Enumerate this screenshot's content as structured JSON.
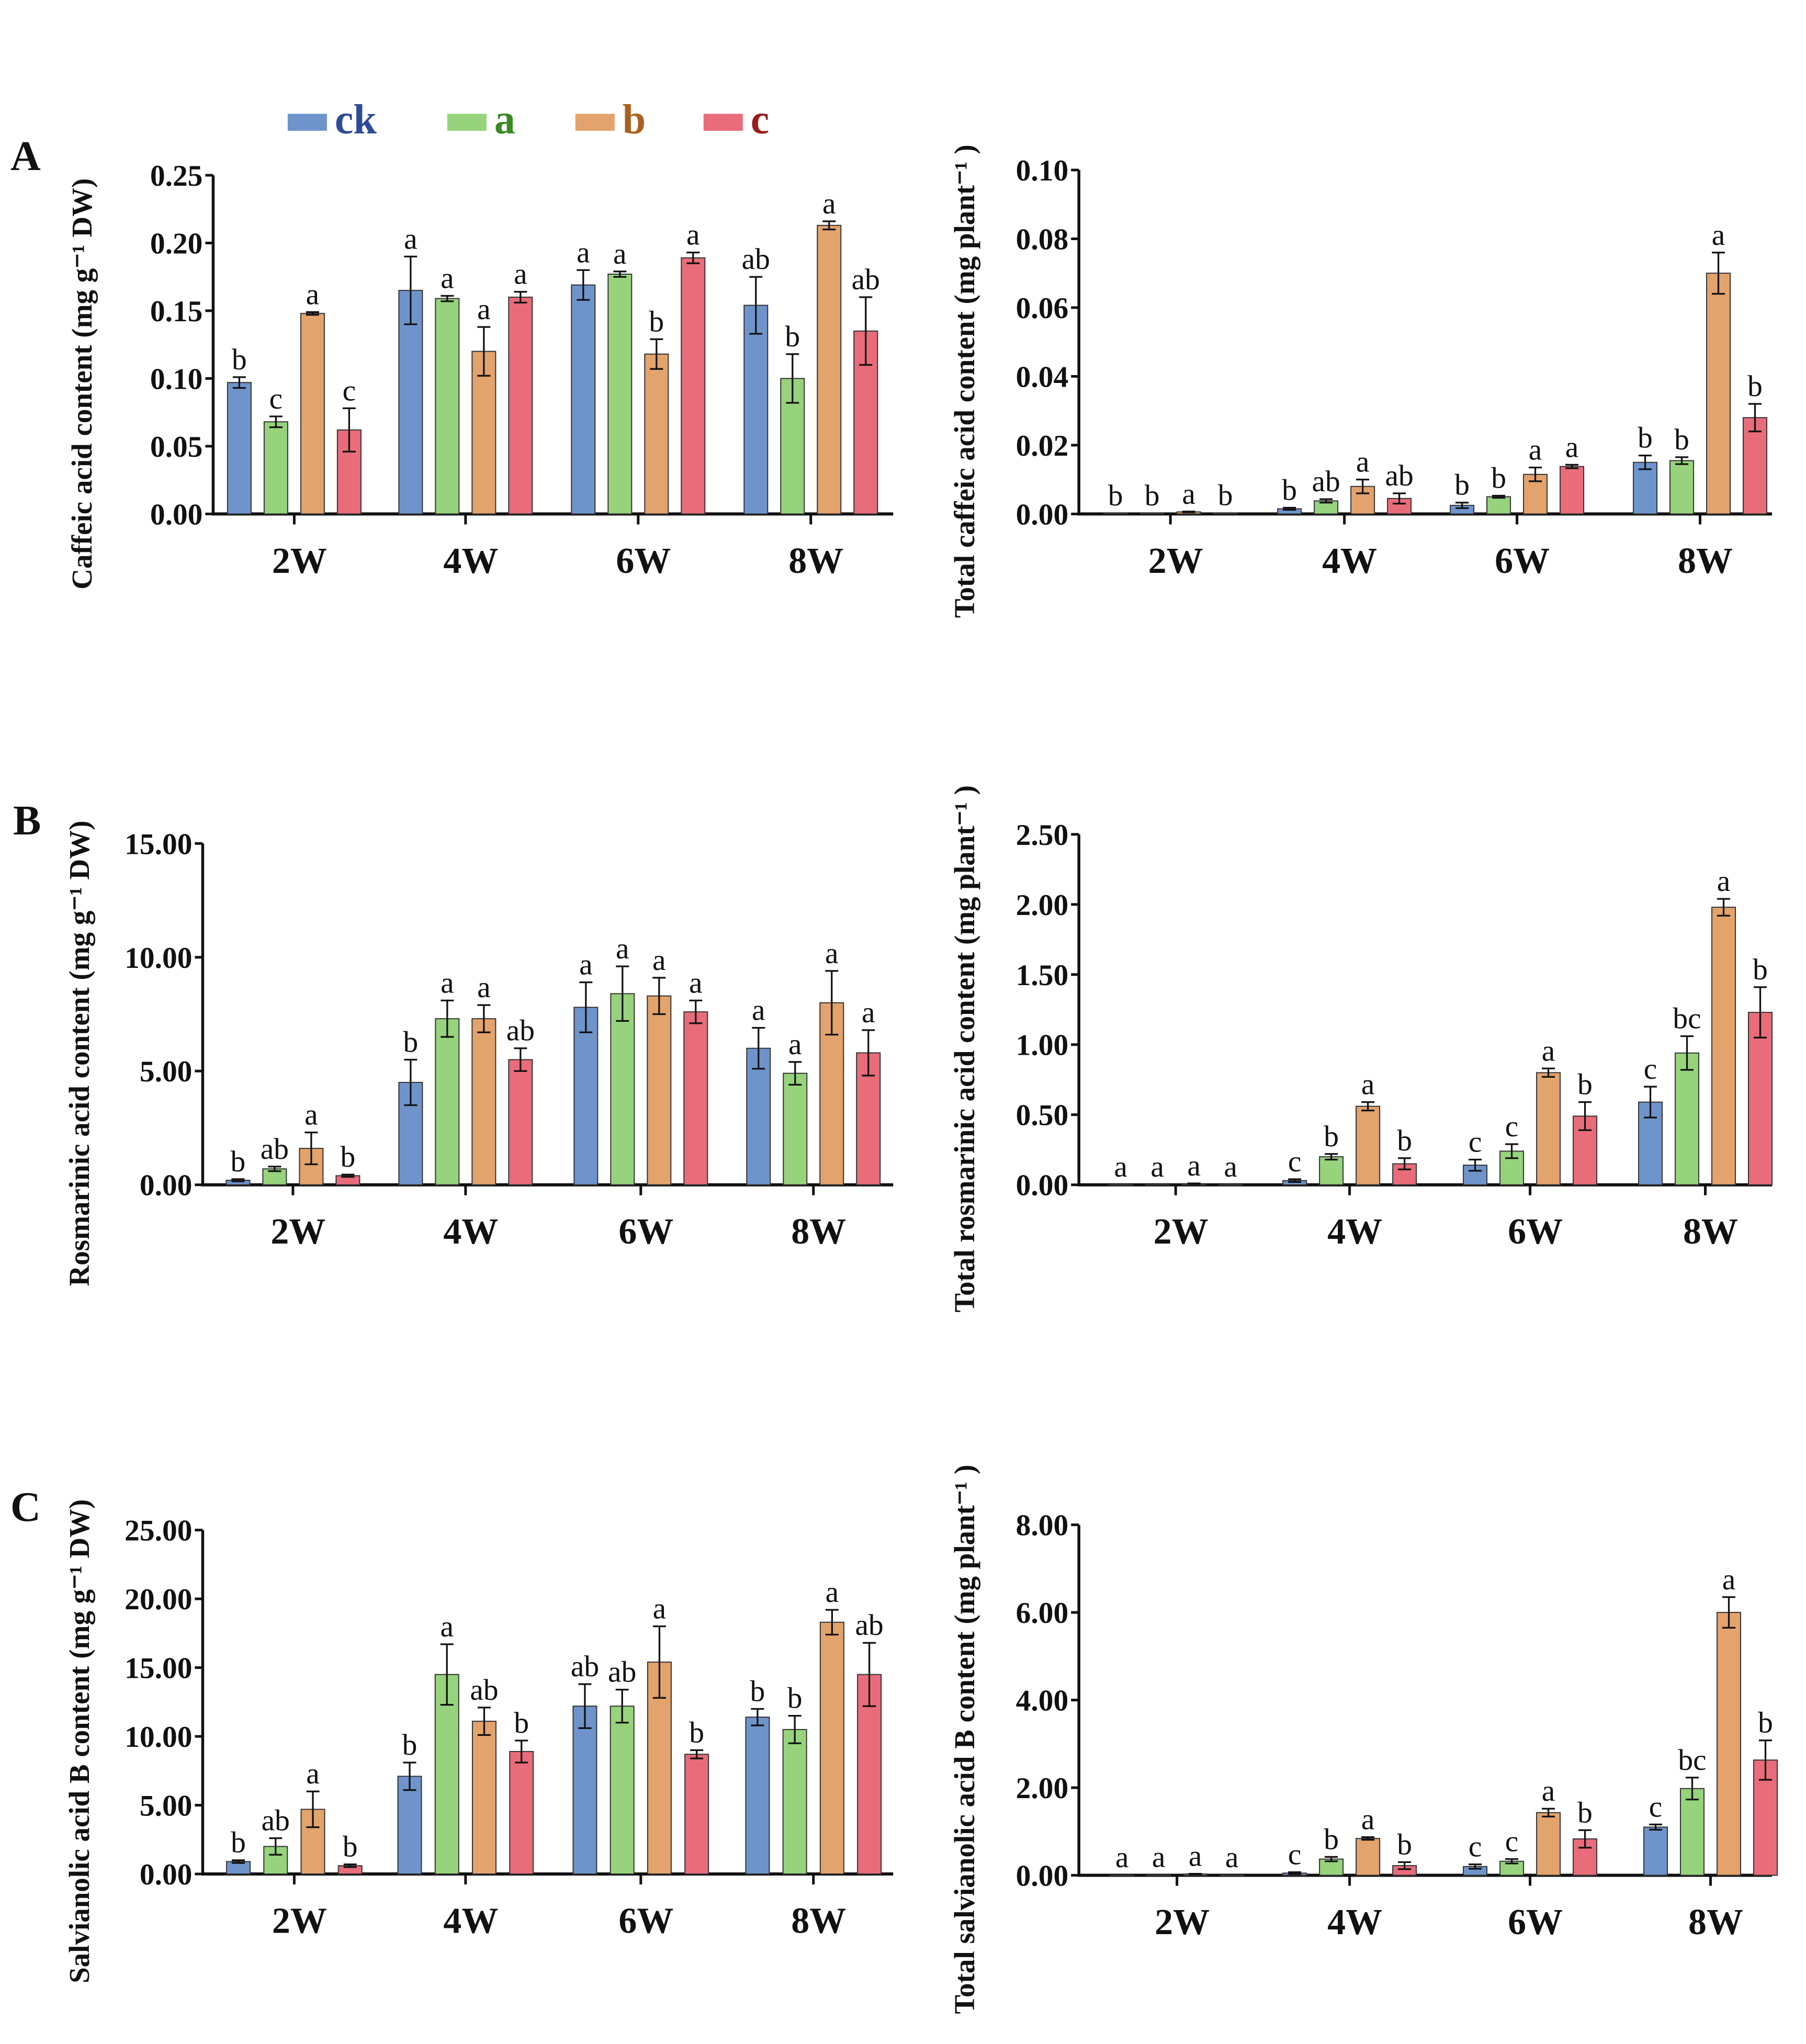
{
  "legend": [
    {
      "label": "ck",
      "color": "#6f94cc",
      "text_color": "#2d4c97"
    },
    {
      "label": "a",
      "color": "#97d37c",
      "text_color": "#3a8a24"
    },
    {
      "label": "b",
      "color": "#e3a36c",
      "text_color": "#a8601e"
    },
    {
      "label": "c",
      "color": "#e96c7a",
      "text_color": "#9c1a1a"
    }
  ],
  "chart_data": [
    {
      "panel": "A",
      "type": "bar",
      "ylabel": "Caffeic acid content (mg g⁻¹ DW)",
      "ylim": [
        0,
        0.25
      ],
      "yticks": [
        "0.00",
        "0.05",
        "0.10",
        "0.15",
        "0.20",
        "0.25"
      ],
      "categories": [
        "2W",
        "4W",
        "6W",
        "8W"
      ],
      "series": [
        {
          "name": "ck",
          "values": [
            0.097,
            0.165,
            0.169,
            0.154
          ],
          "errors": [
            0.004,
            0.025,
            0.011,
            0.021
          ],
          "letters": [
            "b",
            "a",
            "a",
            "ab"
          ]
        },
        {
          "name": "a",
          "values": [
            0.068,
            0.159,
            0.177,
            0.1
          ],
          "errors": [
            0.004,
            0.002,
            0.002,
            0.018
          ],
          "letters": [
            "c",
            "a",
            "a",
            "b"
          ]
        },
        {
          "name": "b",
          "values": [
            0.148,
            0.12,
            0.118,
            0.213
          ],
          "errors": [
            0.001,
            0.018,
            0.011,
            0.003
          ],
          "letters": [
            "a",
            "a",
            "b",
            "a"
          ]
        },
        {
          "name": "c",
          "values": [
            0.062,
            0.16,
            0.189,
            0.135
          ],
          "errors": [
            0.016,
            0.004,
            0.004,
            0.025
          ],
          "letters": [
            "c",
            "a",
            "a",
            "ab"
          ]
        }
      ]
    },
    {
      "panel": "",
      "type": "bar",
      "ylabel": "Total caffeic acid content (mg plant⁻¹ )",
      "ylim": [
        0,
        0.1
      ],
      "yticks": [
        "0.00",
        "0.02",
        "0.04",
        "0.06",
        "0.08",
        "0.10"
      ],
      "categories": [
        "2W",
        "4W",
        "6W",
        "8W"
      ],
      "series": [
        {
          "name": "ck",
          "values": [
            0.0002,
            0.0015,
            0.0025,
            0.015
          ],
          "errors": [
            0,
            0.0003,
            0.0008,
            0.002
          ],
          "letters": [
            "b",
            "b",
            "b",
            "b"
          ]
        },
        {
          "name": "a",
          "values": [
            0.0002,
            0.0038,
            0.005,
            0.0155
          ],
          "errors": [
            0,
            0.0005,
            0.0003,
            0.001
          ],
          "letters": [
            "b",
            "ab",
            "b",
            "b"
          ]
        },
        {
          "name": "b",
          "values": [
            0.0006,
            0.008,
            0.0115,
            0.07
          ],
          "errors": [
            0.0001,
            0.002,
            0.002,
            0.006
          ],
          "letters": [
            "a",
            "a",
            "a",
            "a"
          ]
        },
        {
          "name": "c",
          "values": [
            0.0003,
            0.0045,
            0.0138,
            0.028
          ],
          "errors": [
            0,
            0.0015,
            0.0005,
            0.004
          ],
          "letters": [
            "b",
            "ab",
            "a",
            "b"
          ]
        }
      ]
    },
    {
      "panel": "B",
      "type": "bar",
      "ylabel": "Rosmarinic acid content (mg g⁻¹ DW)",
      "ylim": [
        0,
        15
      ],
      "yticks": [
        "0.00",
        "5.00",
        "10.00",
        "15.00"
      ],
      "categories": [
        "2W",
        "4W",
        "6W",
        "8W"
      ],
      "series": [
        {
          "name": "ck",
          "values": [
            0.2,
            4.5,
            7.8,
            6.0
          ],
          "errors": [
            0.05,
            1.0,
            1.1,
            0.9
          ],
          "letters": [
            "b",
            "b",
            "a",
            "a"
          ]
        },
        {
          "name": "a",
          "values": [
            0.7,
            7.3,
            8.4,
            4.9
          ],
          "errors": [
            0.1,
            0.8,
            1.2,
            0.5
          ],
          "letters": [
            "ab",
            "a",
            "a",
            "a"
          ]
        },
        {
          "name": "b",
          "values": [
            1.6,
            7.3,
            8.3,
            8.0
          ],
          "errors": [
            0.7,
            0.6,
            0.8,
            1.4
          ],
          "letters": [
            "a",
            "a",
            "a",
            "a"
          ]
        },
        {
          "name": "c",
          "values": [
            0.4,
            5.5,
            7.6,
            5.8
          ],
          "errors": [
            0.05,
            0.5,
            0.5,
            1.0
          ],
          "letters": [
            "b",
            "ab",
            "a",
            "a"
          ]
        }
      ]
    },
    {
      "panel": "",
      "type": "bar",
      "ylabel": "Total rosmarinic acid content (mg plant⁻¹ )",
      "ylim": [
        0,
        2.5
      ],
      "yticks": [
        "0.00",
        "0.50",
        "1.00",
        "1.50",
        "2.00",
        "2.50"
      ],
      "categories": [
        "2W",
        "4W",
        "6W",
        "8W"
      ],
      "series": [
        {
          "name": "ck",
          "values": [
            0.002,
            0.03,
            0.14,
            0.59
          ],
          "errors": [
            0,
            0.01,
            0.04,
            0.11
          ],
          "letters": [
            "a",
            "c",
            "c",
            "c"
          ]
        },
        {
          "name": "a",
          "values": [
            0.003,
            0.2,
            0.24,
            0.94
          ],
          "errors": [
            0,
            0.02,
            0.05,
            0.12
          ],
          "letters": [
            "a",
            "b",
            "c",
            "bc"
          ]
        },
        {
          "name": "b",
          "values": [
            0.008,
            0.56,
            0.8,
            1.98
          ],
          "errors": [
            0.002,
            0.03,
            0.03,
            0.06
          ],
          "letters": [
            "a",
            "a",
            "a",
            "a"
          ]
        },
        {
          "name": "c",
          "values": [
            0.002,
            0.15,
            0.49,
            1.23
          ],
          "errors": [
            0,
            0.04,
            0.1,
            0.18
          ],
          "letters": [
            "a",
            "b",
            "b",
            "b"
          ]
        }
      ]
    },
    {
      "panel": "C",
      "type": "bar",
      "ylabel": "Salvianolic acid B content (mg g⁻¹ DW)",
      "ylim": [
        0,
        25
      ],
      "yticks": [
        "0.00",
        "5.00",
        "10.00",
        "15.00",
        "20.00",
        "25.00"
      ],
      "categories": [
        "2W",
        "4W",
        "6W",
        "8W"
      ],
      "series": [
        {
          "name": "ck",
          "values": [
            0.9,
            7.1,
            12.2,
            11.4
          ],
          "errors": [
            0.1,
            1.0,
            1.6,
            0.6
          ],
          "letters": [
            "b",
            "b",
            "ab",
            "b"
          ]
        },
        {
          "name": "a",
          "values": [
            2.0,
            14.5,
            12.2,
            10.5
          ],
          "errors": [
            0.6,
            2.2,
            1.2,
            1.0
          ],
          "letters": [
            "ab",
            "a",
            "ab",
            "b"
          ]
        },
        {
          "name": "b",
          "values": [
            4.7,
            11.1,
            15.4,
            18.3
          ],
          "errors": [
            1.3,
            1.0,
            2.6,
            0.9
          ],
          "letters": [
            "a",
            "ab",
            "a",
            "a"
          ]
        },
        {
          "name": "c",
          "values": [
            0.6,
            8.9,
            8.7,
            14.5
          ],
          "errors": [
            0.1,
            0.8,
            0.3,
            2.3
          ],
          "letters": [
            "b",
            "b",
            "b",
            "ab"
          ]
        }
      ]
    },
    {
      "panel": "",
      "type": "bar",
      "ylabel": "Total salvianolic acid B content (mg plant⁻¹ )",
      "ylim": [
        0,
        8
      ],
      "yticks": [
        "0.00",
        "2.00",
        "4.00",
        "6.00",
        "8.00"
      ],
      "categories": [
        "2W",
        "4W",
        "6W",
        "8W"
      ],
      "series": [
        {
          "name": "ck",
          "values": [
            0.005,
            0.05,
            0.2,
            1.1
          ],
          "errors": [
            0,
            0.02,
            0.05,
            0.06
          ],
          "letters": [
            "a",
            "c",
            "c",
            "c"
          ]
        },
        {
          "name": "a",
          "values": [
            0.01,
            0.37,
            0.32,
            1.98
          ],
          "errors": [
            0,
            0.05,
            0.05,
            0.25
          ],
          "letters": [
            "a",
            "b",
            "c",
            "bc"
          ]
        },
        {
          "name": "b",
          "values": [
            0.03,
            0.84,
            1.43,
            6.0
          ],
          "errors": [
            0.005,
            0.03,
            0.09,
            0.35
          ],
          "letters": [
            "a",
            "a",
            "a",
            "a"
          ]
        },
        {
          "name": "c",
          "values": [
            0.005,
            0.22,
            0.83,
            2.63
          ],
          "errors": [
            0,
            0.08,
            0.2,
            0.45
          ],
          "letters": [
            "a",
            "b",
            "b",
            "b"
          ]
        }
      ]
    }
  ]
}
